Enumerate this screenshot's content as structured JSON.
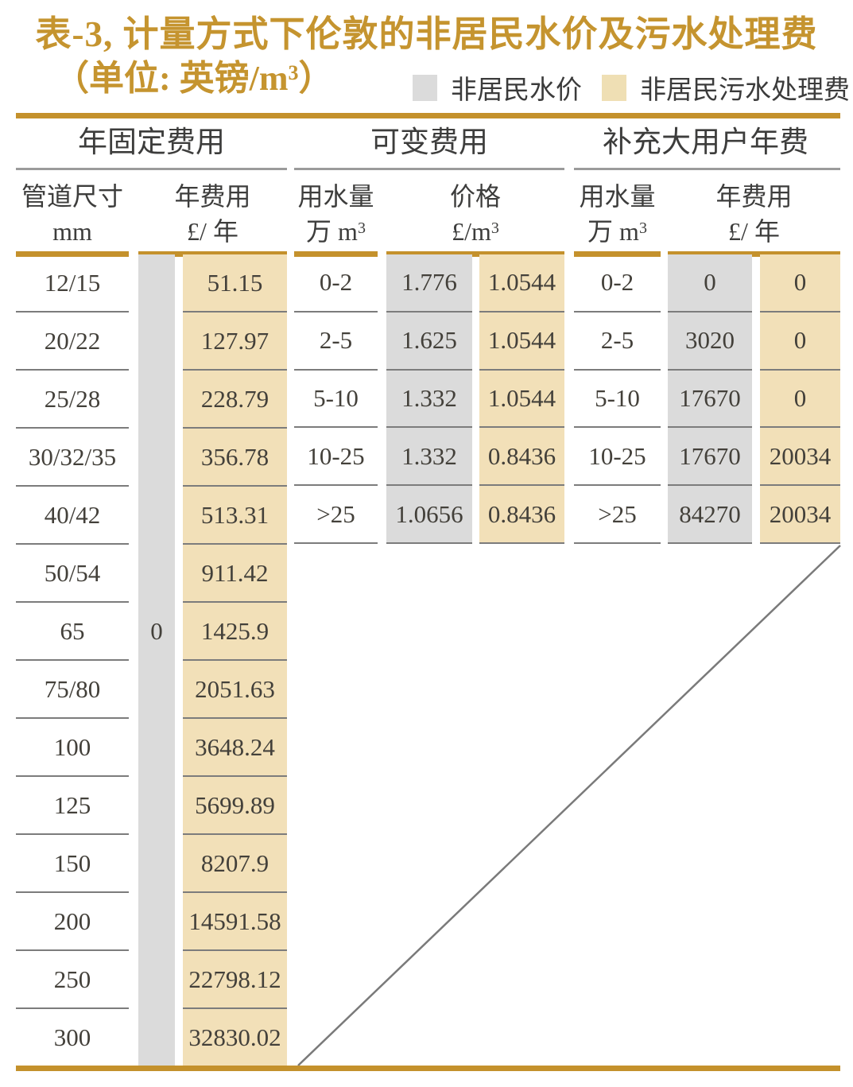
{
  "title": {
    "line1": "表-3, 计量方式下伦敦的非居民水价及污水处理费",
    "unit_prefix": "（单位: 英镑/m",
    "unit_sup": "3",
    "unit_suffix": "）"
  },
  "legend": {
    "water": {
      "label": "非居民水价",
      "color": "#DBDBDB"
    },
    "sewage": {
      "label": "非居民污水处理费",
      "color": "#EFDFB4"
    }
  },
  "groups": {
    "fixed": "年固定费用",
    "variable": "可变费用",
    "large_user": "补充大用户年费"
  },
  "headers": {
    "pipe": {
      "line1": "管道尺寸",
      "line2": "mm",
      "sup": ""
    },
    "fixed_fee": {
      "line1": "年费用",
      "line2": "£/ 年",
      "sup": ""
    },
    "var_usage": {
      "line1": "用水量",
      "line2": "万 m",
      "sup": "3"
    },
    "var_price": {
      "line1": "价格",
      "line2": "£/m",
      "sup": "3"
    },
    "lu_usage": {
      "line1": "用水量",
      "line2": "万 m",
      "sup": "3"
    },
    "lu_fee": {
      "line1": "年费用",
      "line2": "£/ 年",
      "sup": ""
    }
  },
  "table": {
    "fixed": {
      "pipe_sizes": [
        "12/15",
        "20/22",
        "25/28",
        "30/32/35",
        "40/42",
        "50/54",
        "65",
        "75/80",
        "100",
        "125",
        "150",
        "200",
        "250",
        "300"
      ],
      "water_annual_fee": "0",
      "sewage_annual_fee": [
        "51.15",
        "127.97",
        "228.79",
        "356.78",
        "513.31",
        "911.42",
        "1425.9",
        "2051.63",
        "3648.24",
        "5699.89",
        "8207.9",
        "14591.58",
        "22798.12",
        "32830.02"
      ]
    },
    "variable": {
      "usage": [
        "0-2",
        "2-5",
        "5-10",
        "10-25",
        ">25"
      ],
      "water_price": [
        "1.776",
        "1.625",
        "1.332",
        "1.332",
        "1.0656"
      ],
      "sewage_price": [
        "1.0544",
        "1.0544",
        "1.0544",
        "0.8436",
        "0.8436"
      ]
    },
    "large_user": {
      "usage": [
        "0-2",
        "2-5",
        "5-10",
        "10-25",
        ">25"
      ],
      "water_fee": [
        "0",
        "3020",
        "17670",
        "17670",
        "84270"
      ],
      "sewage_fee": [
        "0",
        "0",
        "0",
        "20034",
        "20034"
      ]
    }
  },
  "colors": {
    "gold": "#C4912C",
    "tan_fill": "#F2E0B8",
    "gray_fill": "#DBDBDB",
    "text_dark": "#3D3D3C",
    "separator": "#7C7C7C",
    "diagonal": "#7A7A7A"
  },
  "chart_data": {
    "type": "table",
    "title": "表-3, 计量方式下伦敦的非居民水价及污水处理费（单位: 英镑/m3）",
    "legend": [
      "非居民水价",
      "非居民污水处理费"
    ],
    "sections": [
      {
        "name": "年固定费用",
        "columns": [
          "管道尺寸 mm",
          "非居民水价 年费用 £/年",
          "非居民污水处理费 年费用 £/年"
        ],
        "rows": [
          [
            "12/15",
            0,
            51.15
          ],
          [
            "20/22",
            0,
            127.97
          ],
          [
            "25/28",
            0,
            228.79
          ],
          [
            "30/32/35",
            0,
            356.78
          ],
          [
            "40/42",
            0,
            513.31
          ],
          [
            "50/54",
            0,
            911.42
          ],
          [
            "65",
            0,
            1425.9
          ],
          [
            "75/80",
            0,
            2051.63
          ],
          [
            "100",
            0,
            3648.24
          ],
          [
            "125",
            0,
            5699.89
          ],
          [
            "150",
            0,
            8207.9
          ],
          [
            "200",
            0,
            14591.58
          ],
          [
            "250",
            0,
            22798.12
          ],
          [
            "300",
            0,
            32830.02
          ]
        ]
      },
      {
        "name": "可变费用",
        "columns": [
          "用水量 万m3",
          "非居民水价 价格 £/m3",
          "非居民污水处理费 价格 £/m3"
        ],
        "rows": [
          [
            "0-2",
            1.776,
            1.0544
          ],
          [
            "2-5",
            1.625,
            1.0544
          ],
          [
            "5-10",
            1.332,
            1.0544
          ],
          [
            "10-25",
            1.332,
            0.8436
          ],
          [
            ">25",
            1.0656,
            0.8436
          ]
        ]
      },
      {
        "name": "补充大用户年费",
        "columns": [
          "用水量 万m3",
          "非居民水价 年费用 £/年",
          "非居民污水处理费 年费用 £/年"
        ],
        "rows": [
          [
            "0-2",
            0,
            0
          ],
          [
            "2-5",
            3020,
            0
          ],
          [
            "5-10",
            17670,
            0
          ],
          [
            "10-25",
            17670,
            20034
          ],
          [
            ">25",
            84270,
            20034
          ]
        ]
      }
    ]
  }
}
